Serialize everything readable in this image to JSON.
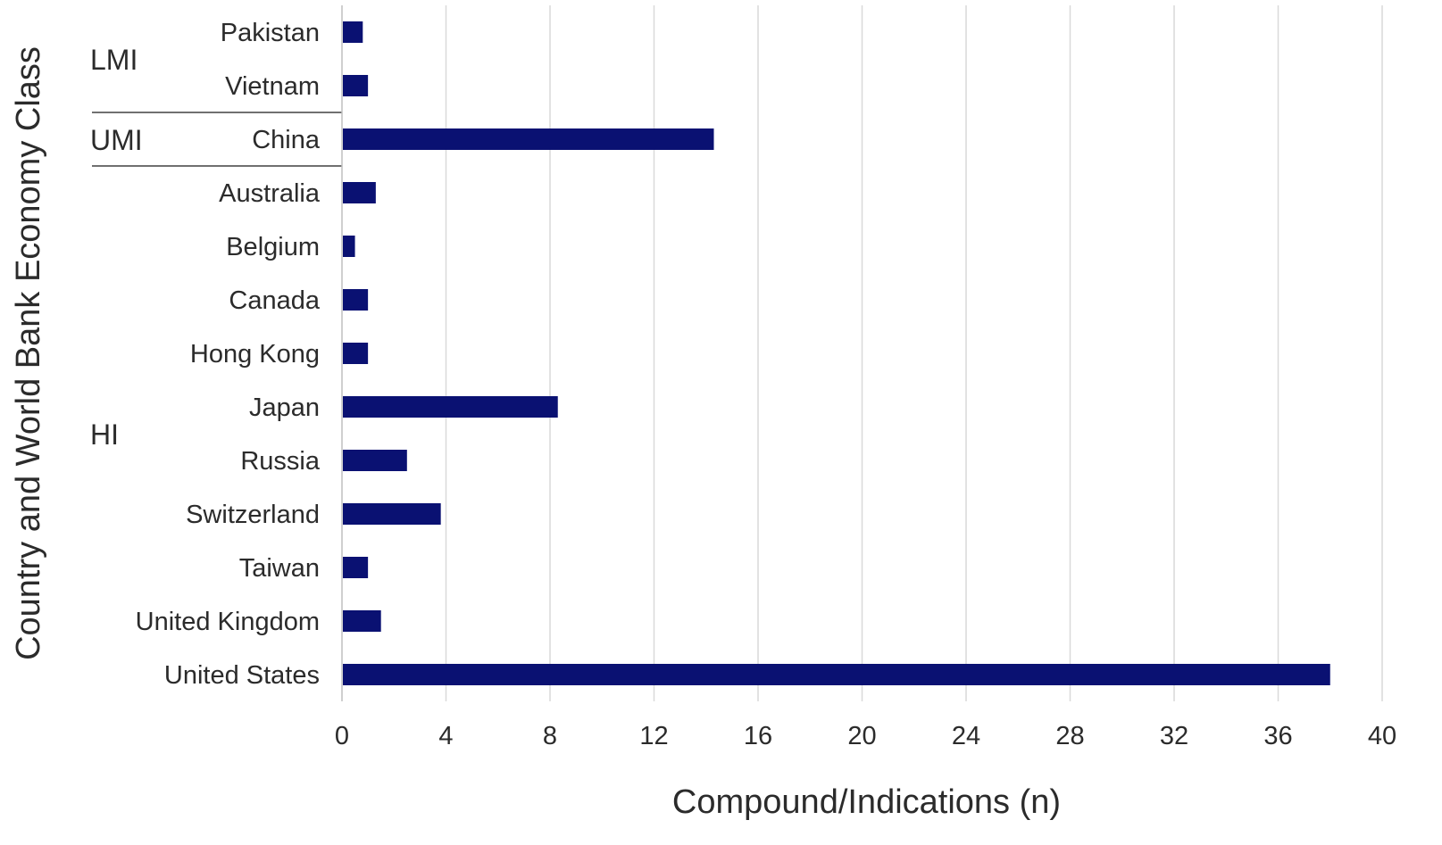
{
  "chart_data": {
    "type": "bar",
    "orientation": "horizontal",
    "xlabel": "Compound/Indications (n)",
    "ylabel": "Country and World Bank Economy Class",
    "xlim": [
      0,
      40
    ],
    "xticks": [
      0,
      4,
      8,
      12,
      16,
      20,
      24,
      28,
      32,
      36,
      40
    ],
    "grid": true,
    "bar_color": "#0a1172",
    "groups": [
      {
        "label": "LMI",
        "categories": [
          "Pakistan",
          "Vietnam"
        ]
      },
      {
        "label": "UMI",
        "categories": [
          "China"
        ]
      },
      {
        "label": "HI",
        "categories": [
          "Australia",
          "Belgium",
          "Canada",
          "Hong Kong",
          "Japan",
          "Russia",
          "Switzerland",
          "Taiwan",
          "United Kingdom",
          "United States"
        ]
      }
    ],
    "categories": [
      "Pakistan",
      "Vietnam",
      "China",
      "Australia",
      "Belgium",
      "Canada",
      "Hong Kong",
      "Japan",
      "Russia",
      "Switzerland",
      "Taiwan",
      "United Kingdom",
      "United States"
    ],
    "values": [
      0.8,
      1.0,
      14.3,
      1.3,
      0.5,
      1.0,
      1.0,
      8.3,
      2.5,
      3.8,
      1.0,
      1.5,
      38.0
    ]
  }
}
